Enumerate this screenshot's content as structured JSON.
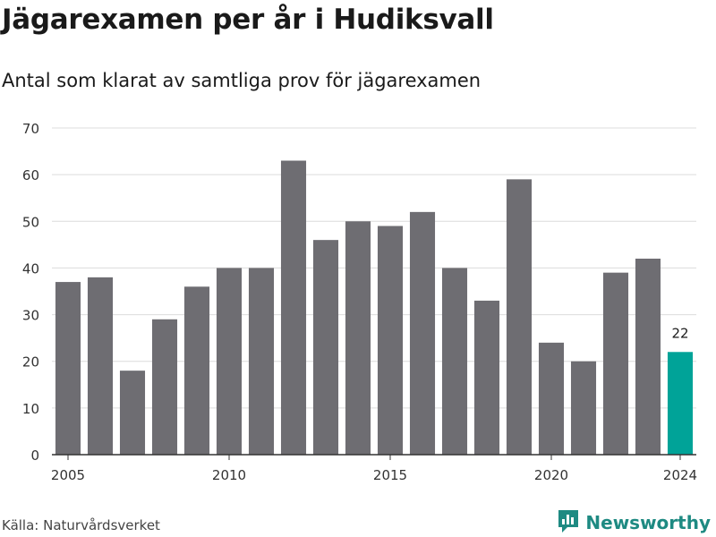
{
  "header": {
    "title": "Jägarexamen per år i Hudiksvall",
    "subtitle": "Antal som klarat av samtliga prov för jägarexamen"
  },
  "footer": {
    "source": "Källa: Naturvårdsverket",
    "brand": "Newsworthy"
  },
  "colors": {
    "bar": "#6e6d72",
    "highlight": "#00a398",
    "grid": "#dcdcdc",
    "axis": "#333333",
    "brand": "#1e8a82"
  },
  "icons": {
    "brand_logo": "newsworthy-chart-icon"
  },
  "chart_data": {
    "type": "bar",
    "x": [
      2005,
      2006,
      2007,
      2008,
      2009,
      2010,
      2011,
      2012,
      2013,
      2014,
      2015,
      2016,
      2017,
      2018,
      2019,
      2020,
      2021,
      2022,
      2023,
      2024
    ],
    "values": [
      37,
      38,
      18,
      29,
      36,
      40,
      40,
      63,
      46,
      50,
      49,
      52,
      40,
      33,
      59,
      24,
      20,
      39,
      42,
      22
    ],
    "xticks": [
      2005,
      2010,
      2015,
      2020,
      2024
    ],
    "yticks": [
      0,
      10,
      20,
      30,
      40,
      50,
      60,
      70
    ],
    "ylim": [
      0,
      70
    ],
    "highlight_index": 19,
    "data_labels": [
      {
        "index": 19,
        "text": "22"
      }
    ],
    "grid": true,
    "title": "Jägarexamen per år i Hudiksvall",
    "subtitle": "Antal som klarat av samtliga prov för jägarexamen",
    "xlabel": "",
    "ylabel": ""
  }
}
